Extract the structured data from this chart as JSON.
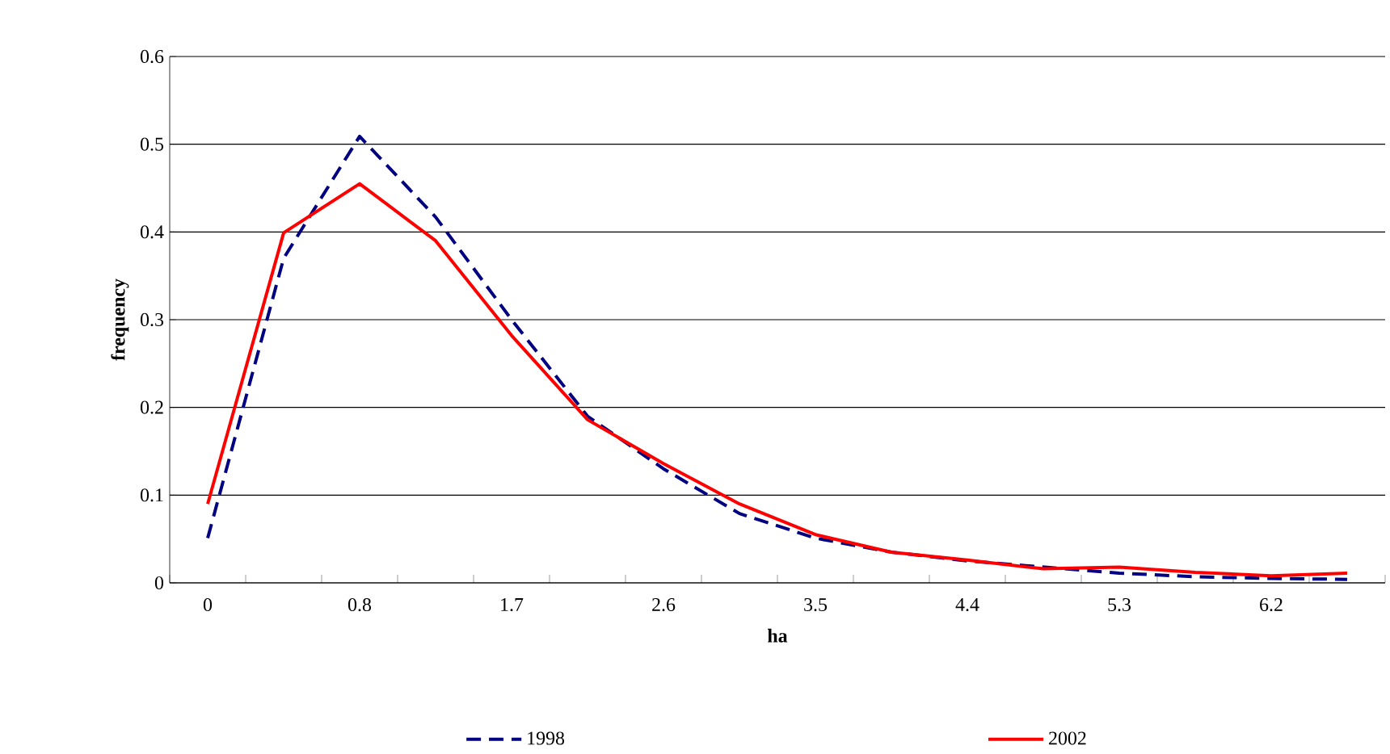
{
  "chart_data": {
    "type": "line",
    "xlabel": "ha",
    "ylabel": "frequency",
    "categories": [
      "0",
      null,
      "0.8",
      null,
      "1.7",
      null,
      "2.6",
      null,
      "3.5",
      null,
      "4.4",
      null,
      "5.3",
      null,
      "6.2",
      null
    ],
    "series": [
      {
        "name": "1998",
        "color": "#000080",
        "line_style": "dashed",
        "values": [
          0.051,
          0.37,
          0.509,
          0.417,
          0.3,
          0.19,
          0.13,
          0.079,
          0.051,
          0.035,
          0.025,
          0.018,
          0.011,
          0.007,
          0.005,
          0.004
        ]
      },
      {
        "name": "2002",
        "color": "#ff0000",
        "line_style": "solid",
        "values": [
          0.09,
          0.399,
          0.455,
          0.39,
          0.282,
          0.186,
          0.136,
          0.09,
          0.055,
          0.035,
          0.026,
          0.016,
          0.018,
          0.012,
          0.008,
          0.011
        ]
      }
    ],
    "ylim": [
      0,
      0.6
    ],
    "yticks": [
      0,
      0.1,
      0.2,
      0.3,
      0.4,
      0.5,
      0.6
    ],
    "grid": "y",
    "legend": "bottom",
    "marker": "none"
  }
}
